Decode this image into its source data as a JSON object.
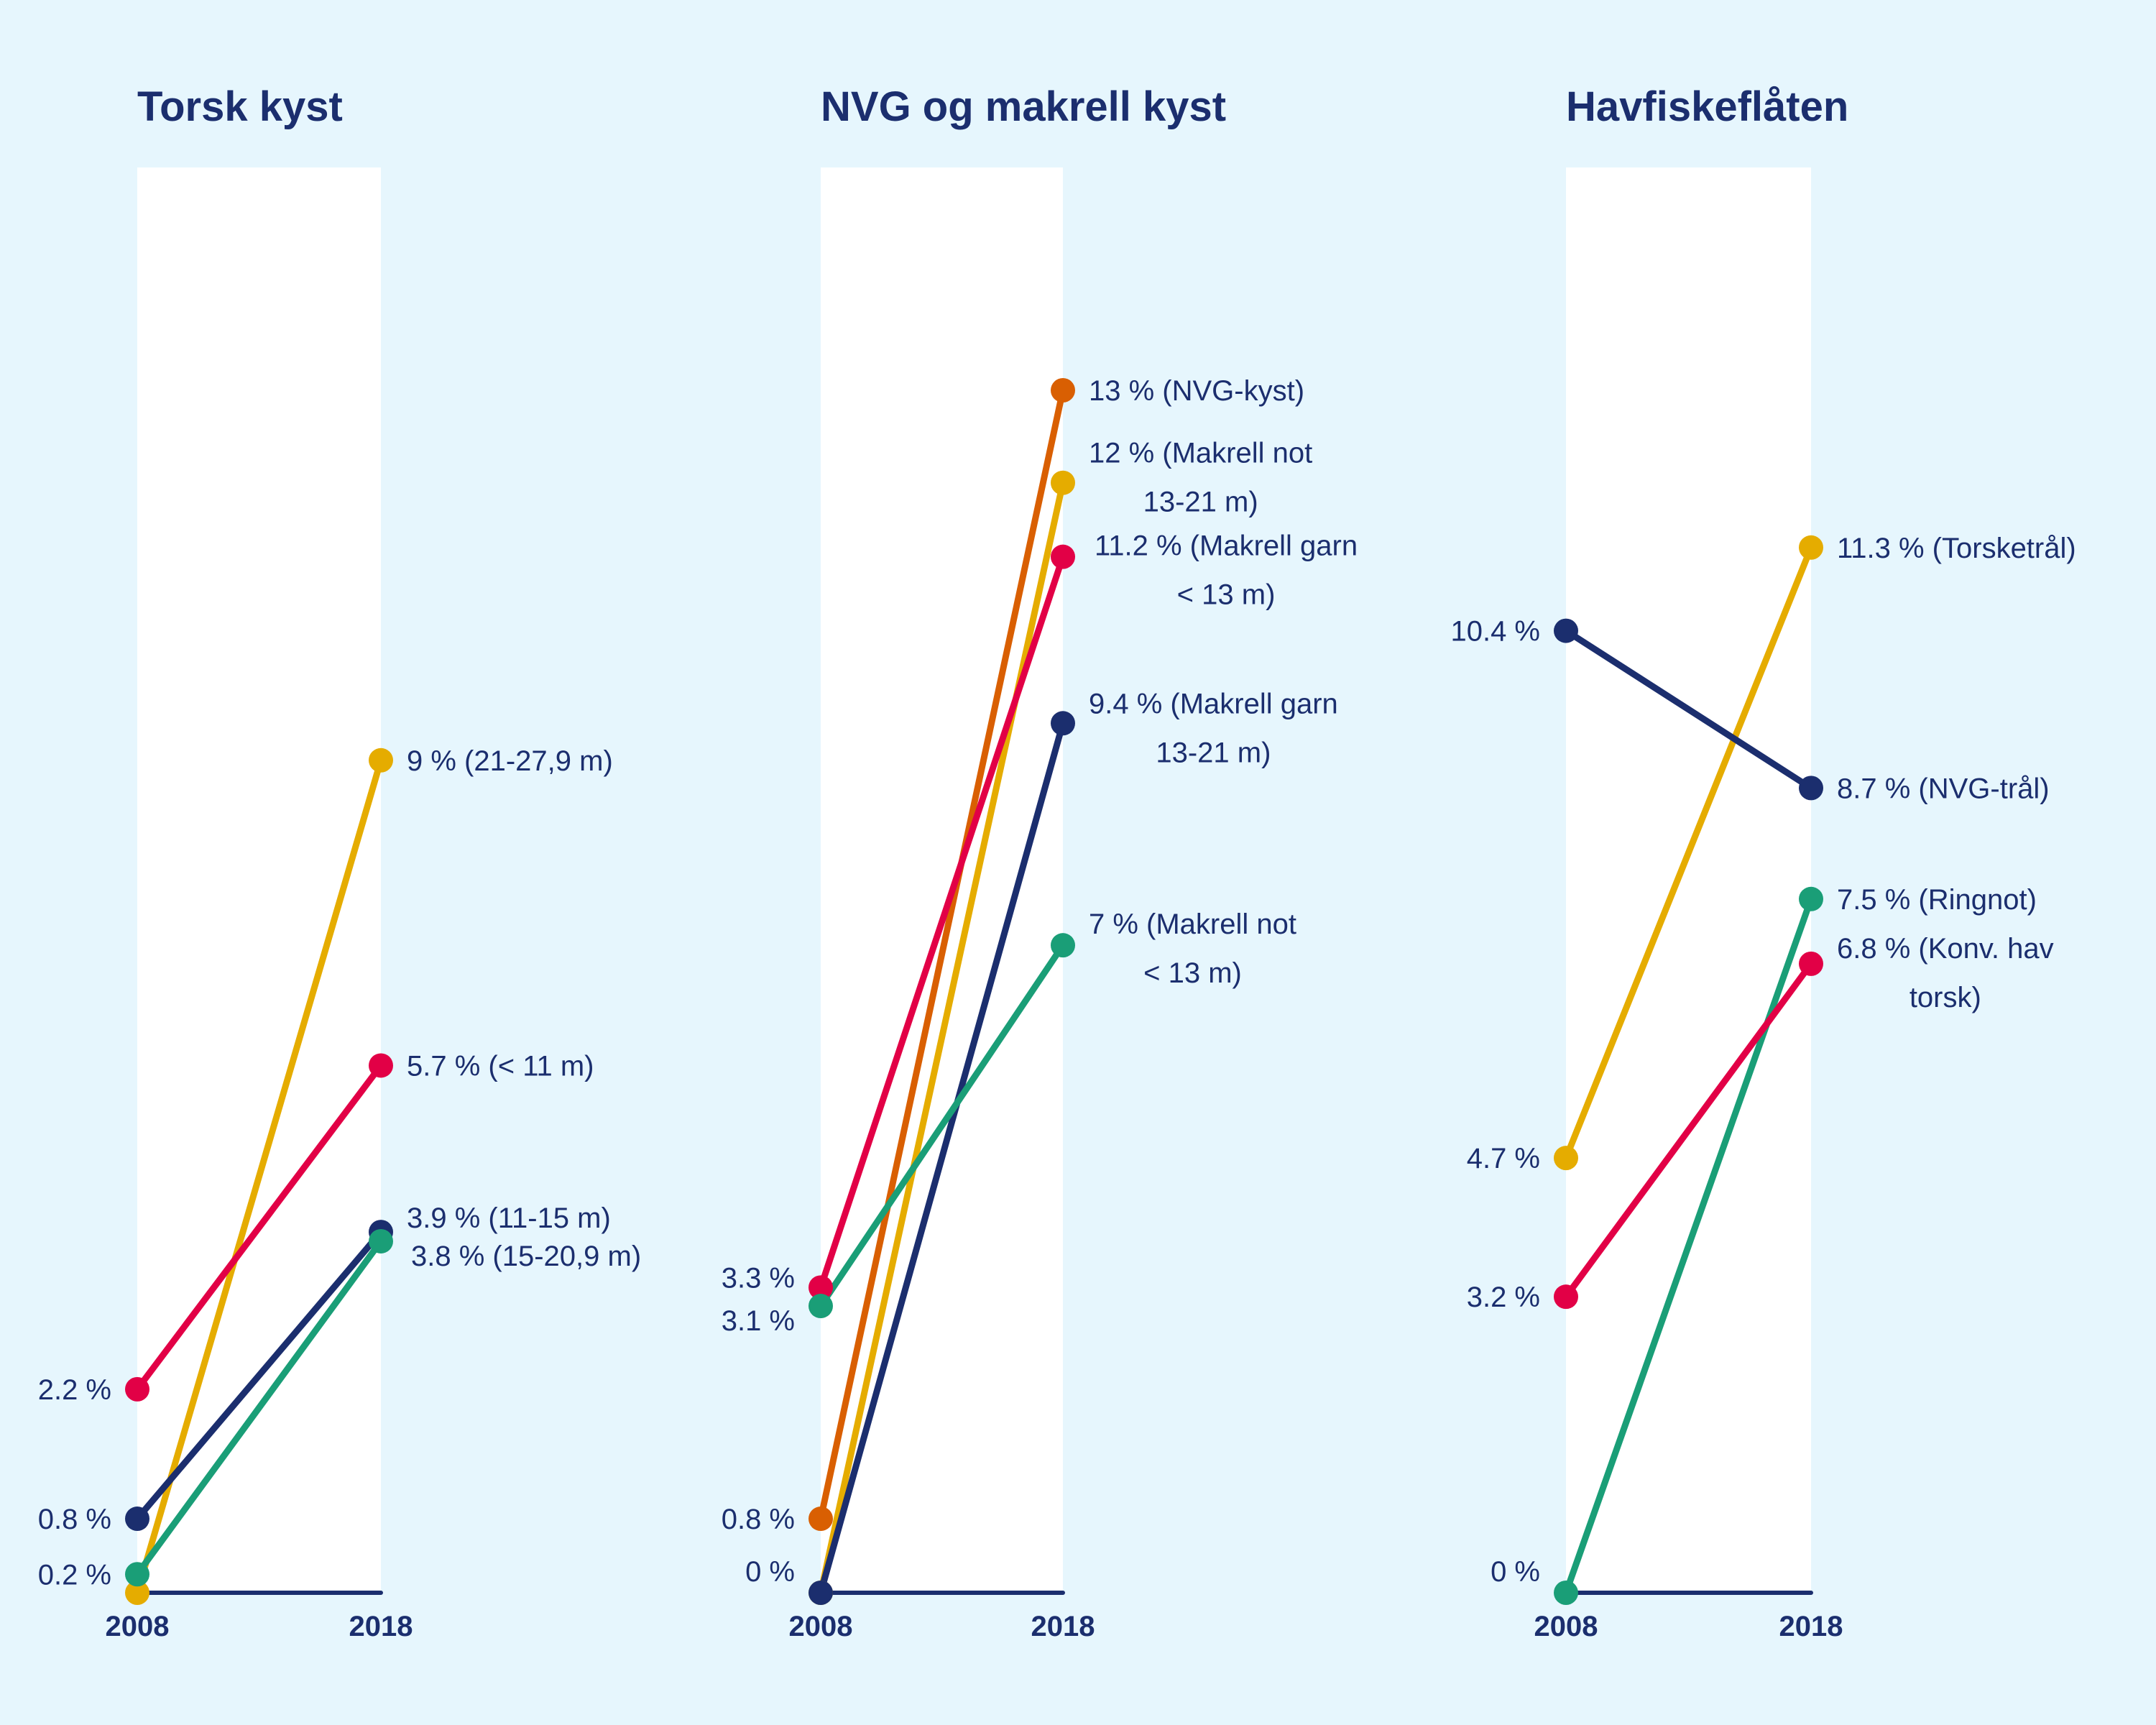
{
  "colors": {
    "background": "#E6F6FD",
    "band": "#FFFFFF",
    "text": "#1B2E6E",
    "navy": "#1B2E6E",
    "yellow": "#E5AC00",
    "red": "#E20046",
    "green": "#1A9E77",
    "orange": "#D95F02"
  },
  "chart_data": [
    {
      "type": "line",
      "title": "Torsk kyst",
      "x": [
        "2008",
        "2018"
      ],
      "ylim": [
        0,
        13
      ],
      "series": [
        {
          "name": "21-27,9 m",
          "color": "yellow",
          "values": [
            0,
            9
          ],
          "label_start": "",
          "label_end": [
            "9 % (21-27,9 m)"
          ]
        },
        {
          "name": "< 11 m",
          "color": "red",
          "values": [
            2.2,
            5.7
          ],
          "label_start": "2.2 %",
          "label_end": [
            "5.7 % (< 11 m)"
          ]
        },
        {
          "name": "11-15 m",
          "color": "navy",
          "values": [
            0.8,
            3.9
          ],
          "label_start": "0.8 %",
          "label_end": [
            "3.9 % (11-15 m)"
          ]
        },
        {
          "name": "15-20,9 m",
          "color": "green",
          "values": [
            0.2,
            3.8
          ],
          "label_start": "0.2 %",
          "label_end": [
            "3.8 % (15-20,9 m)"
          ]
        }
      ]
    },
    {
      "type": "line",
      "title": "NVG og makrell kyst",
      "x": [
        "2008",
        "2018"
      ],
      "ylim": [
        0,
        13
      ],
      "series": [
        {
          "name": "NVG-kyst",
          "color": "orange",
          "values": [
            0.8,
            13
          ],
          "label_start": "0.8 %",
          "label_end": [
            "13 % (NVG-kyst)"
          ]
        },
        {
          "name": "Makrell not 13-21 m",
          "color": "yellow",
          "values": [
            0,
            12
          ],
          "label_start": "0 %",
          "label_end": [
            "12 % (Makrell not",
            "13-21 m)"
          ]
        },
        {
          "name": "Makrell garn < 13 m",
          "color": "red",
          "values": [
            3.3,
            11.2
          ],
          "label_start": "3.3 %",
          "label_end": [
            "11.2 % (Makrell garn",
            "< 13 m)"
          ]
        },
        {
          "name": "Makrell garn 13-21 m",
          "color": "navy",
          "values": [
            0,
            9.4
          ],
          "label_start": "",
          "label_end": [
            "9.4 % (Makrell garn",
            "13-21 m)"
          ]
        },
        {
          "name": "Makrell not < 13 m",
          "color": "green",
          "values": [
            3.1,
            7
          ],
          "label_start": "3.1 %",
          "label_end": [
            "7 % (Makrell not",
            "< 13 m)"
          ]
        }
      ]
    },
    {
      "type": "line",
      "title": "Havfiskeflåten",
      "x": [
        "2008",
        "2018"
      ],
      "ylim": [
        0,
        13
      ],
      "series": [
        {
          "name": "Torsketrål",
          "color": "yellow",
          "values": [
            4.7,
            11.3
          ],
          "label_start": "4.7 %",
          "label_end": [
            "11.3 % (Torsketrål)"
          ]
        },
        {
          "name": "NVG-trål",
          "color": "navy",
          "values": [
            10.4,
            8.7
          ],
          "label_start": "10.4 %",
          "label_end": [
            "8.7 % (NVG-trål)"
          ]
        },
        {
          "name": "Ringnot",
          "color": "green",
          "values": [
            0,
            7.5
          ],
          "label_start": "0 %",
          "label_end": [
            "7.5 % (Ringnot)"
          ]
        },
        {
          "name": "Konv. hav torsk",
          "color": "red",
          "values": [
            3.2,
            6.8
          ],
          "label_start": "3.2 %",
          "label_end": [
            "6.8 % (Konv. hav",
            "torsk)"
          ]
        }
      ]
    }
  ]
}
